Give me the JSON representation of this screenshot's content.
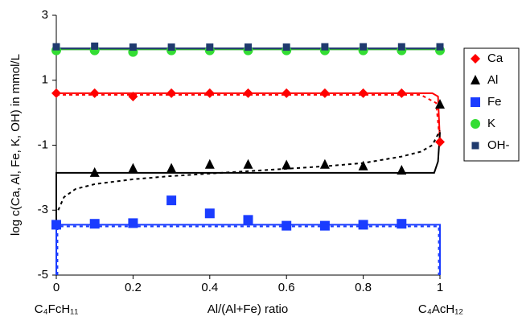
{
  "chart_data": {
    "type": "scatter",
    "y_label": "log c(Ca, Al, Fe, K, OH) in mmol/L",
    "x_label": "Al/(Al+Fe) ratio",
    "left_label": "C₄FcH₁₁",
    "right_label": "C₄AcH₁₂",
    "xlim": [
      0,
      1
    ],
    "ylim": [
      -5,
      3
    ],
    "xticks": [
      0,
      0.2,
      0.4,
      0.6,
      0.8,
      1
    ],
    "yticks": [
      -5,
      -3,
      -1,
      1,
      3
    ],
    "x": [
      0,
      0.1,
      0.2,
      0.3,
      0.4,
      0.5,
      0.6,
      0.7,
      0.8,
      0.9,
      1
    ],
    "series": [
      {
        "name": "Ca",
        "color": "#ff0000",
        "marker": "diamond",
        "values": [
          0.6,
          0.6,
          0.5,
          0.6,
          0.6,
          0.6,
          0.6,
          0.6,
          0.6,
          0.6,
          -0.9
        ]
      },
      {
        "name": "Al",
        "color": "#000000",
        "marker": "triangle",
        "values": [
          null,
          -1.85,
          -1.72,
          -1.72,
          -1.6,
          -1.6,
          -1.62,
          -1.6,
          -1.65,
          -1.78,
          0.25
        ]
      },
      {
        "name": "Fe",
        "color": "#1a3cff",
        "marker": "square",
        "values": [
          -3.45,
          -3.42,
          -3.4,
          -2.7,
          -3.1,
          -3.3,
          -3.48,
          -3.48,
          -3.45,
          -3.42,
          null
        ]
      },
      {
        "name": "K",
        "color": "#33dd33",
        "marker": "circle",
        "values": [
          1.92,
          1.92,
          1.87,
          1.92,
          1.92,
          1.92,
          1.92,
          1.92,
          1.92,
          1.92,
          1.92
        ]
      },
      {
        "name": "OH-",
        "color": "#1f3a6e",
        "marker": "smallsquare",
        "values": [
          2.03,
          2.05,
          2.02,
          2.02,
          2.02,
          2.02,
          2.02,
          2.03,
          2.03,
          2.03,
          2.03
        ]
      }
    ],
    "lines": [
      {
        "color": "#33aa33",
        "dash": false,
        "x": [
          0,
          1
        ],
        "values": [
          1.95,
          1.95
        ]
      },
      {
        "color": "#1f3a6e",
        "dash": false,
        "x": [
          0,
          1
        ],
        "values": [
          1.98,
          1.98
        ]
      },
      {
        "color": "#ff0000",
        "dash": false,
        "x": [
          0,
          0.98,
          0.995,
          1
        ],
        "values": [
          0.6,
          0.6,
          0.5,
          -0.9
        ]
      },
      {
        "color": "#ff0000",
        "dash": true,
        "x": [
          0,
          0.95,
          0.99,
          1
        ],
        "values": [
          0.55,
          0.55,
          0.3,
          -0.9
        ]
      },
      {
        "color": "#000000",
        "dash": false,
        "x": [
          0,
          0,
          0.985,
          0.995,
          1
        ],
        "values": [
          -3.3,
          -1.85,
          -1.85,
          -1.5,
          -0.6
        ]
      },
      {
        "color": "#000000",
        "dash": true,
        "x": [
          0.005,
          0.02,
          0.05,
          0.1,
          0.2,
          0.3,
          0.5,
          0.7,
          0.8,
          0.9,
          0.95,
          0.98,
          1
        ],
        "values": [
          -3,
          -2.6,
          -2.35,
          -2.2,
          -2.05,
          -1.95,
          -1.8,
          -1.65,
          -1.55,
          -1.35,
          -1.2,
          -1,
          -0.55
        ]
      },
      {
        "color": "#1a3cff",
        "dash": false,
        "x": [
          0,
          0,
          0.995,
          1,
          1
        ],
        "values": [
          -5,
          -3.45,
          -3.45,
          -3.45,
          -5
        ]
      },
      {
        "color": "#1a3cff",
        "dash": true,
        "x": [
          0.003,
          0.003,
          0.99,
          0.997,
          0.997
        ],
        "values": [
          -5,
          -3.5,
          -3.5,
          -3.5,
          -5
        ]
      }
    ]
  }
}
